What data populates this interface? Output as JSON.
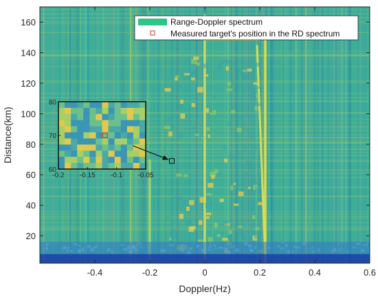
{
  "chart_data": {
    "type": "heatmap",
    "title": "",
    "xlabel": "Doppler(Hz)",
    "ylabel": "Distance(km)",
    "xlim": [
      -0.6,
      0.6
    ],
    "ylim": [
      2,
      170
    ],
    "xticks": [
      "-0.4",
      "-0.2",
      "0",
      "0.2",
      "0.4",
      "0.6"
    ],
    "yticks": [
      "20",
      "40",
      "60",
      "80",
      "100",
      "120",
      "140",
      "160"
    ],
    "legend": {
      "placement": "top-right",
      "entries": [
        {
          "label": "Range-Doppler spectrum",
          "kind": "patch",
          "color": "#2ec487"
        },
        {
          "label": "Measured target's position in the RD spectrum",
          "kind": "square-marker",
          "color": "#e0302a"
        }
      ]
    },
    "target": {
      "doppler": -0.12,
      "distance": 69
    },
    "bright_lines_doppler": [
      -0.2,
      0.0,
      0.22,
      -0.27
    ],
    "inset": {
      "xlim": [
        -0.2,
        -0.05
      ],
      "ylim": [
        60,
        80
      ],
      "xticks": [
        "-0.2",
        "-0.15",
        "-0.1",
        "-0.05"
      ],
      "yticks": [
        "60",
        "70",
        "80"
      ],
      "target": {
        "doppler": -0.12,
        "distance": 70
      }
    },
    "colors": {
      "background": "#3fae98",
      "low_band": "#2a5fc4",
      "floor": "#1a3aa8",
      "hot": "#e8d24a",
      "legend_patch": "#2ec487",
      "marker": "#e0302a"
    }
  }
}
